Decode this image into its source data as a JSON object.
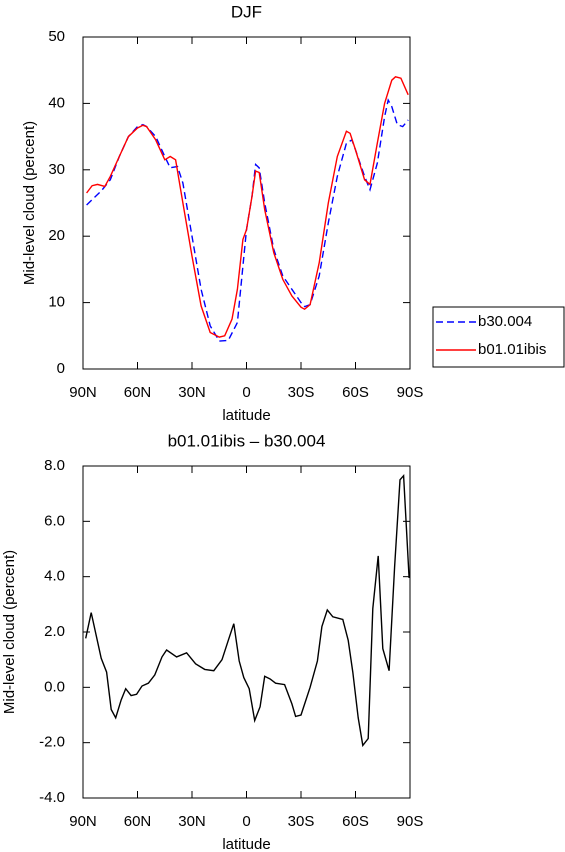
{
  "chart_data": [
    {
      "type": "line",
      "title": "DJF",
      "xlabel": "latitude",
      "ylabel": "Mid-level cloud (percent)",
      "xlim": [
        90,
        -90
      ],
      "ylim": [
        0,
        50
      ],
      "xticks": [
        {
          "value": 90,
          "label": "90N"
        },
        {
          "value": 60,
          "label": "60N"
        },
        {
          "value": 30,
          "label": "30N"
        },
        0,
        {
          "value": -30,
          "label": "30S"
        },
        {
          "value": -60,
          "label": "60S"
        },
        {
          "value": -90,
          "label": "90S"
        }
      ],
      "yticks": [
        0,
        10,
        20,
        30,
        40,
        50
      ],
      "legend": "right",
      "series": [
        {
          "name": "b30.004",
          "color": "#0000ff",
          "dash": true,
          "x": [
            88,
            85,
            80,
            75,
            70,
            65,
            60,
            57,
            55,
            50,
            45,
            42,
            38,
            35,
            30,
            25,
            20,
            15,
            10,
            5,
            0,
            -3,
            -5,
            -7,
            -10,
            -15,
            -20,
            -25,
            -30,
            -32,
            -35,
            -40,
            -45,
            -50,
            -55,
            -58,
            -60,
            -65,
            -68,
            -72,
            -76,
            -78,
            -80,
            -83,
            -86,
            -89
          ],
          "values": [
            24.7,
            25.5,
            26.8,
            28.5,
            32,
            35,
            36.5,
            36.8,
            36.5,
            35,
            32,
            30.3,
            30.5,
            28,
            20,
            12,
            6.5,
            4.2,
            4.3,
            7,
            21,
            26,
            30.8,
            30.3,
            25,
            18,
            14,
            12,
            10,
            9.4,
            9.7,
            14,
            22,
            29,
            34,
            34.5,
            33,
            29,
            27,
            31,
            38,
            40.5,
            39.5,
            36.8,
            36.5,
            37.5
          ]
        },
        {
          "name": "b01.01ibis",
          "color": "#ff0000",
          "dash": false,
          "x": [
            88,
            85,
            82,
            78,
            75,
            70,
            65,
            60,
            57,
            55,
            50,
            45,
            42,
            39,
            35,
            30,
            25,
            20,
            15,
            12,
            8,
            5,
            2,
            0,
            -3,
            -5,
            -7,
            -10,
            -15,
            -20,
            -25,
            -30,
            -32,
            -35,
            -40,
            -45,
            -50,
            -55,
            -57,
            -60,
            -65,
            -68,
            -72,
            -76,
            -80,
            -82,
            -85,
            -89
          ],
          "values": [
            26.5,
            27.6,
            27.8,
            27.5,
            29,
            32,
            35,
            36.3,
            36.7,
            36.5,
            34.5,
            31.5,
            32,
            31.5,
            25,
            17,
            9.5,
            5.5,
            4.8,
            5,
            7.5,
            12,
            19.5,
            21,
            26,
            29.8,
            29.6,
            24,
            17.5,
            13.5,
            11,
            9.3,
            9,
            9.7,
            16,
            25,
            32,
            35.8,
            35.5,
            33,
            28.5,
            27.8,
            34,
            40,
            43.5,
            44,
            43.8,
            41.3
          ]
        }
      ]
    },
    {
      "type": "line",
      "title": "b01.01ibis – b30.004",
      "xlabel": "latitude",
      "ylabel": "Mid-level cloud (percent)",
      "xlim": [
        90,
        -90
      ],
      "ylim": [
        -4,
        8
      ],
      "xticks": [
        {
          "value": 90,
          "label": "90N"
        },
        {
          "value": 60,
          "label": "60N"
        },
        {
          "value": 30,
          "label": "30N"
        },
        0,
        {
          "value": -30,
          "label": "30S"
        },
        {
          "value": -60,
          "label": "60S"
        },
        {
          "value": -90,
          "label": "90S"
        }
      ],
      "yticks": [
        {
          "value": -4,
          "label": "-4.0"
        },
        {
          "value": -2,
          "label": "-2.0"
        },
        {
          "value": 0,
          "label": "0.0"
        },
        {
          "value": 2,
          "label": "2.0"
        },
        {
          "value": 4,
          "label": "4.0"
        },
        {
          "value": 6,
          "label": "6.0"
        },
        {
          "value": 8,
          "label": "8.0"
        }
      ],
      "series": [
        {
          "color": "#000000",
          "dash": false,
          "x": [
            88.5,
            85.5,
            80,
            77,
            74.5,
            72,
            69,
            66.5,
            63.5,
            60.5,
            57.5,
            54,
            50.5,
            46.5,
            44,
            38.5,
            33,
            28,
            23,
            18,
            13.5,
            10,
            7,
            4,
            1.5,
            -1.5,
            -4.5,
            -7.5,
            -10,
            -13,
            -16,
            -21,
            -25,
            -27,
            -30,
            -35,
            -39,
            -41.5,
            -44.5,
            -47.5,
            -53,
            -56,
            -58.5,
            -61.5,
            -64,
            -67,
            -69.5,
            -72.5,
            -75,
            -78.5,
            -81.5,
            -84.5,
            -86.5,
            -89.5
          ],
          "values": [
            1.77,
            2.7,
            1.05,
            0.55,
            -0.8,
            -1.1,
            -0.45,
            -0.05,
            -0.3,
            -0.25,
            0.05,
            0.15,
            0.45,
            1.1,
            1.35,
            1.1,
            1.25,
            0.85,
            0.65,
            0.6,
            1.0,
            1.7,
            2.3,
            0.95,
            0.35,
            -0.05,
            -1.2,
            -0.7,
            0.4,
            0.3,
            0.15,
            0.1,
            -0.6,
            -1.05,
            -1.0,
            0,
            0.95,
            2.2,
            2.8,
            2.55,
            2.45,
            1.7,
            0.55,
            -1.1,
            -2.1,
            -1.85,
            2.85,
            4.75,
            1.4,
            0.6,
            4.35,
            7.5,
            7.65,
            3.95
          ]
        }
      ]
    }
  ]
}
